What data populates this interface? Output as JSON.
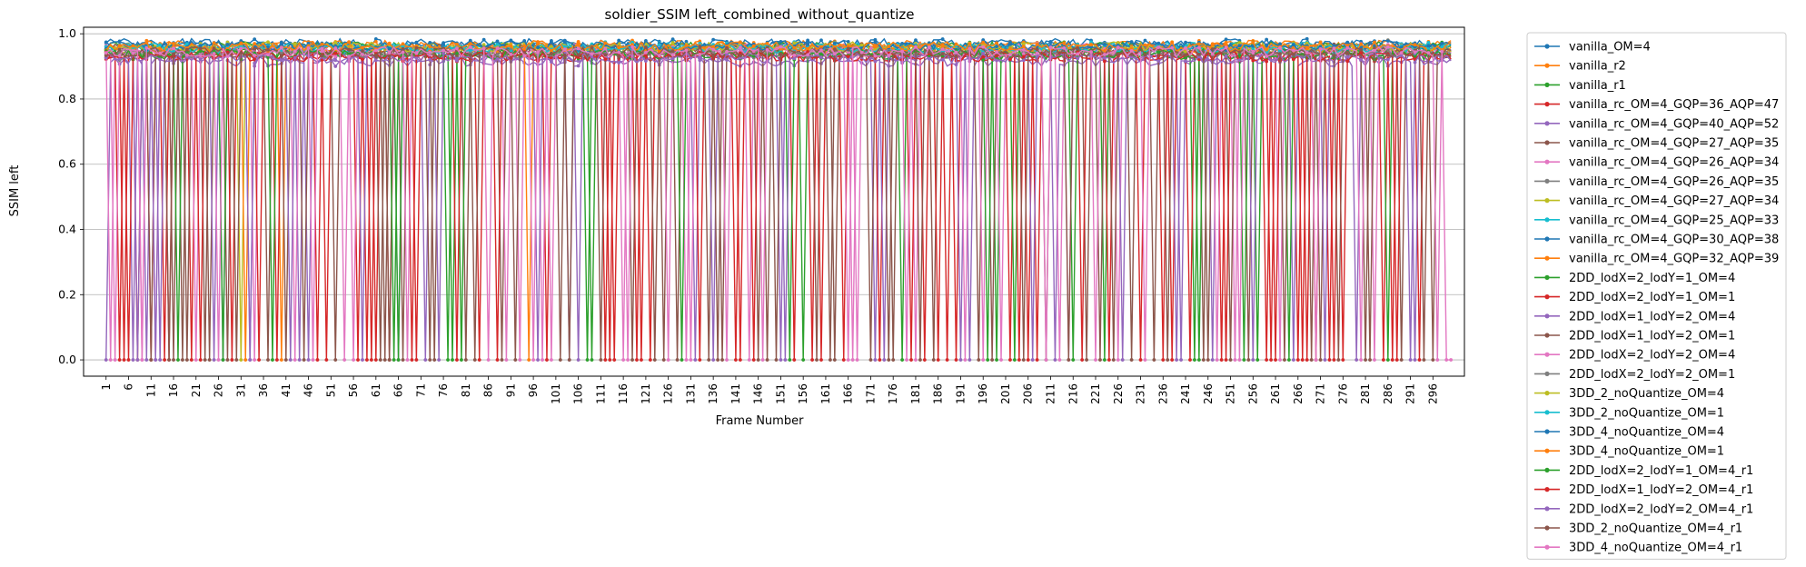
{
  "chart_data": {
    "type": "line",
    "title": "soldier_SSIM left_combined_without_quantize",
    "xlabel": "Frame Number",
    "ylabel": "SSIM left",
    "xlim": [
      -4,
      303
    ],
    "ylim": [
      -0.05,
      1.02
    ],
    "grid": "y",
    "legend_position": "outside-right",
    "x_range": [
      1,
      300
    ],
    "x_ticks": [
      "1",
      "6",
      "11",
      "16",
      "21",
      "26",
      "31",
      "36",
      "41",
      "46",
      "51",
      "56",
      "61",
      "66",
      "71",
      "76",
      "81",
      "86",
      "91",
      "96",
      "101",
      "106",
      "111",
      "116",
      "121",
      "126",
      "131",
      "136",
      "141",
      "146",
      "151",
      "156",
      "161",
      "166",
      "171",
      "176",
      "181",
      "186",
      "191",
      "196",
      "201",
      "206",
      "211",
      "216",
      "221",
      "226",
      "231",
      "236",
      "241",
      "246",
      "251",
      "256",
      "261",
      "266",
      "271",
      "276",
      "281",
      "286",
      "291",
      "296"
    ],
    "y_ticks": [
      "0.0",
      "0.2",
      "0.4",
      "0.6",
      "0.8",
      "1.0"
    ],
    "series": [
      {
        "name": "vanilla_OM=4",
        "color": "#1f77b4",
        "high": 0.97,
        "dropouts": []
      },
      {
        "name": "vanilla_r2",
        "color": "#ff7f0e",
        "high": 0.965,
        "dropouts": []
      },
      {
        "name": "vanilla_r1",
        "color": "#2ca02c",
        "high": 0.96,
        "dropouts": []
      },
      {
        "name": "vanilla_rc_OM=4_GQP=36_AQP=47",
        "color": "#d62728",
        "high": 0.935,
        "dropouts": [
          5,
          8,
          11,
          14,
          57,
          61,
          64,
          99,
          112,
          119,
          142,
          158,
          183,
          188,
          206,
          236,
          249,
          259,
          266,
          270,
          273,
          285,
          293
        ]
      },
      {
        "name": "vanilla_rc_OM=4_GQP=40_AQP=52",
        "color": "#9467bd",
        "high": 0.915,
        "dropouts": [
          1,
          7,
          10,
          13,
          27,
          33,
          46,
          66,
          72,
          104,
          132,
          172,
          193,
          212,
          240,
          265,
          279,
          292
        ]
      },
      {
        "name": "vanilla_rc_OM=4_GQP=27_AQP=35",
        "color": "#8c564b",
        "high": 0.955,
        "dropouts": [
          11,
          16,
          18,
          23,
          28,
          37,
          62,
          67,
          81,
          102,
          118,
          128,
          138,
          146,
          159,
          176,
          195,
          219,
          229,
          245,
          255,
          269,
          289,
          296
        ]
      },
      {
        "name": "vanilla_rc_OM=4_GQP=26_AQP=34",
        "color": "#e377c2",
        "high": 0.955,
        "dropouts": [
          2,
          9,
          12,
          34,
          93,
          98,
          116,
          130,
          139,
          167,
          181,
          196,
          215,
          226,
          252,
          262,
          283
        ]
      },
      {
        "name": "vanilla_rc_OM=4_GQP=26_AQP=35",
        "color": "#7f7f7f",
        "high": 0.95,
        "dropouts": []
      },
      {
        "name": "vanilla_rc_OM=4_GQP=27_AQP=34",
        "color": "#bcbd22",
        "high": 0.95,
        "dropouts": [
          31
        ]
      },
      {
        "name": "vanilla_rc_OM=4_GQP=25_AQP=33",
        "color": "#17becf",
        "high": 0.96,
        "dropouts": []
      },
      {
        "name": "vanilla_rc_OM=4_GQP=30_AQP=38",
        "color": "#1f77b4",
        "high": 0.96,
        "dropouts": []
      },
      {
        "name": "vanilla_rc_OM=4_GQP=32_AQP=39",
        "color": "#ff7f0e",
        "high": 0.955,
        "dropouts": [
          32,
          40,
          95
        ]
      },
      {
        "name": "2DD_lodX=2_lodY=1_OM=4",
        "color": "#2ca02c",
        "high": 0.94,
        "dropouts": [
          66,
          78,
          80,
          109,
          156,
          199,
          223,
          243,
          257
        ]
      },
      {
        "name": "2DD_lodX=2_lodY=1_OM=1",
        "color": "#d62728",
        "high": 0.93,
        "dropouts": [
          4,
          15,
          20,
          39,
          50,
          60,
          70,
          84,
          113,
          122,
          133,
          141,
          154,
          165,
          180,
          190,
          202,
          208,
          218,
          231,
          242,
          261,
          268,
          276,
          287
        ]
      },
      {
        "name": "2DD_lodX=1_lodY=2_OM=4",
        "color": "#9467bd",
        "high": 0.93,
        "dropouts": [
          8,
          12,
          44,
          151,
          247
        ]
      },
      {
        "name": "2DD_lodX=1_lodY=2_OM=1",
        "color": "#8c564b",
        "high": 0.94,
        "dropouts": [
          19,
          24,
          41,
          52,
          64,
          74,
          89,
          111,
          125,
          135,
          148,
          163,
          171,
          185,
          198,
          210,
          222,
          234,
          251,
          271,
          281
        ]
      },
      {
        "name": "2DD_lodX=2_lodY=2_OM=4",
        "color": "#e377c2",
        "high": 0.945,
        "dropouts": [
          3,
          21,
          43,
          56,
          90,
          126,
          144,
          168,
          200,
          213,
          248
        ]
      },
      {
        "name": "2DD_lodX=2_lodY=2_OM=1",
        "color": "#7f7f7f",
        "high": 0.94,
        "dropouts": []
      },
      {
        "name": "3DD_2_noQuantize_OM=4",
        "color": "#bcbd22",
        "high": 0.96,
        "dropouts": []
      },
      {
        "name": "3DD_2_noQuantize_OM=1",
        "color": "#17becf",
        "high": 0.955,
        "dropouts": []
      },
      {
        "name": "3DD_4_noQuantize_OM=4",
        "color": "#1f77b4",
        "high": 0.965,
        "dropouts": []
      },
      {
        "name": "3DD_4_noQuantize_OM=1",
        "color": "#ff7f0e",
        "high": 0.96,
        "dropouts": []
      },
      {
        "name": "2DD_lodX=2_lodY=1_OM=4_r1",
        "color": "#2ca02c",
        "high": 0.935,
        "dropouts": [
          17,
          27,
          38,
          65,
          77,
          108,
          129,
          153,
          178,
          197,
          203,
          216,
          244,
          254,
          264,
          286
        ]
      },
      {
        "name": "2DD_lodX=1_lodY=2_OM=4_r1",
        "color": "#d62728",
        "high": 0.93,
        "dropouts": [
          6,
          22,
          29,
          35,
          48,
          59,
          69,
          79,
          88,
          114,
          120,
          145,
          160,
          173,
          186,
          204,
          224,
          238,
          250,
          260,
          267,
          274,
          288
        ]
      },
      {
        "name": "2DD_lodX=2_lodY=2_OM=4_r1",
        "color": "#9467bd",
        "high": 0.925,
        "dropouts": [
          25,
          33,
          42,
          58,
          75,
          97,
          106,
          136,
          152,
          174,
          191,
          207,
          227,
          239,
          256,
          272,
          291
        ]
      },
      {
        "name": "3DD_2_noQuantize_OM=4_r1",
        "color": "#8c564b",
        "high": 0.945,
        "dropouts": [
          15,
          30,
          45,
          63,
          73,
          83,
          92,
          104,
          123,
          137,
          150,
          162,
          175,
          182,
          205,
          215,
          225,
          237,
          246,
          263,
          275,
          282,
          294
        ]
      },
      {
        "name": "3DD_4_noQuantize_OM=4_r1",
        "color": "#e377c2",
        "high": 0.945,
        "dropouts": [
          9,
          26,
          47,
          54,
          68,
          86,
          96,
          100,
          117,
          131,
          147,
          166,
          179,
          192,
          210,
          221,
          232,
          253,
          270,
          280,
          297,
          299,
          300
        ]
      }
    ]
  }
}
